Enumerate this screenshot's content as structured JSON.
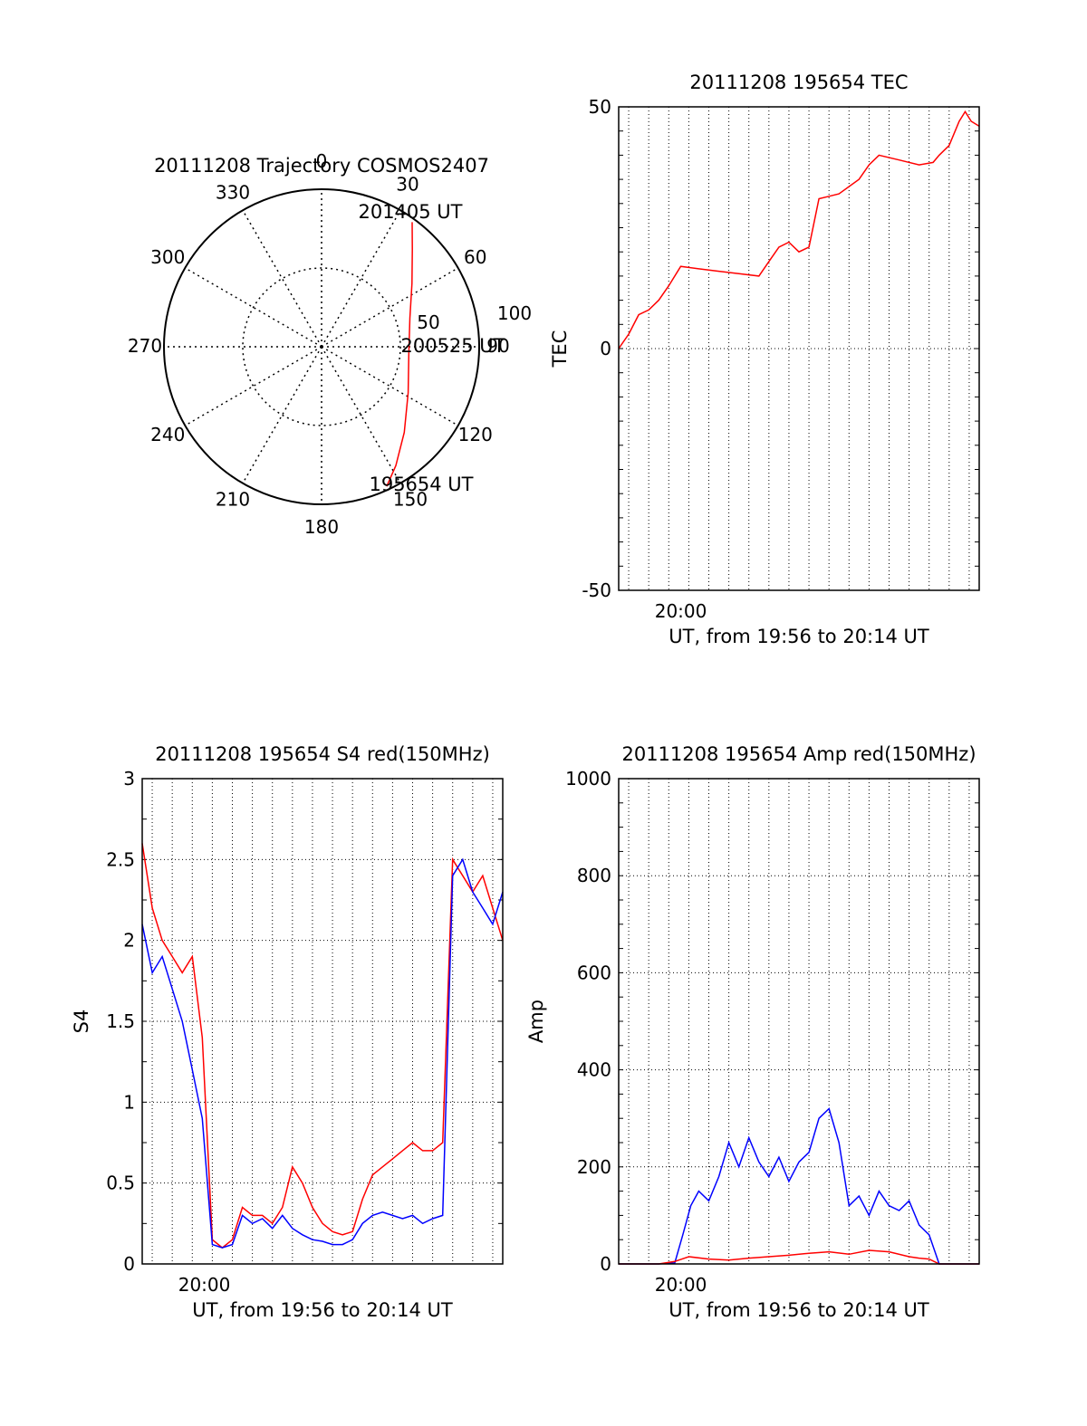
{
  "chart_data": [
    {
      "type": "polar",
      "title": "20111208 Trajectory COSMOS2407",
      "angle_labels": [
        "0",
        "30",
        "60",
        "90",
        "120",
        "150",
        "180",
        "210",
        "240",
        "270",
        "300",
        "330"
      ],
      "radial_labels": [
        "50",
        "100"
      ],
      "annotations": [
        "201405 UT",
        "200525 UT",
        "195654 UT"
      ],
      "series": [
        {
          "color": "#ff0000",
          "points": [
            {
              "az": 155,
              "el": 2
            },
            {
              "az": 148,
              "el": 10
            },
            {
              "az": 136,
              "el": 22
            },
            {
              "az": 118,
              "el": 34
            },
            {
              "az": 95,
              "el": 40
            },
            {
              "az": 72,
              "el": 37
            },
            {
              "az": 55,
              "el": 27
            },
            {
              "az": 43,
              "el": 14
            },
            {
              "az": 36,
              "el": 2
            }
          ]
        }
      ]
    },
    {
      "type": "line",
      "title": "20111208 195654 TEC",
      "xlabel": "UT, from 19:56 to 20:14 UT",
      "ylabel": "TEC",
      "xlim": [
        0,
        18
      ],
      "ylim": [
        -50,
        50
      ],
      "x_tick_labels": [
        {
          "x": 3.1,
          "label": "20:00"
        }
      ],
      "y_tick_labels": [
        "50",
        "0",
        "-50"
      ],
      "grid": true,
      "series": [
        {
          "color": "#ff0000",
          "x": [
            0,
            0.5,
            1.0,
            1.5,
            2.0,
            2.5,
            3.1,
            4.0,
            5.0,
            6.0,
            7.0,
            7.5,
            8.0,
            8.5,
            9.0,
            9.5,
            10.0,
            10.5,
            11.0,
            12.0,
            12.5,
            13.0,
            14.0,
            15.0,
            15.7,
            16.0,
            16.5,
            17.0,
            17.3,
            17.6,
            18.0
          ],
          "y": [
            0,
            3,
            7,
            8,
            10,
            13,
            17,
            16.5,
            16,
            15.5,
            15,
            18,
            21,
            22,
            20,
            21,
            31,
            31.5,
            32,
            35,
            38,
            40,
            39,
            38,
            38.5,
            40,
            42,
            47,
            49,
            47,
            46
          ]
        }
      ]
    },
    {
      "type": "line",
      "title": "20111208 195654 S4 red(150MHz)",
      "xlabel": "UT, from 19:56 to 20:14 UT",
      "ylabel": "S4",
      "xlim": [
        0,
        18
      ],
      "ylim": [
        0,
        3
      ],
      "x_tick_labels": [
        {
          "x": 3.1,
          "label": "20:00"
        }
      ],
      "y_tick_labels": [
        "0",
        "0.5",
        "1",
        "1.5",
        "2",
        "2.5",
        "3"
      ],
      "grid": true,
      "series": [
        {
          "color": "#ff0000",
          "x": [
            0,
            0.5,
            1.0,
            1.5,
            2.0,
            2.5,
            3.0,
            3.5,
            4.0,
            4.5,
            5.0,
            5.5,
            6.0,
            6.5,
            7.0,
            7.5,
            8.0,
            8.5,
            9.0,
            9.5,
            10.0,
            10.5,
            11.0,
            11.5,
            12.0,
            12.5,
            13.0,
            13.5,
            14.0,
            14.5,
            15.0,
            15.5,
            16.0,
            16.5,
            17.0,
            17.5,
            18.0
          ],
          "y": [
            2.6,
            2.2,
            2.0,
            1.9,
            1.8,
            1.9,
            1.4,
            0.15,
            0.1,
            0.15,
            0.35,
            0.3,
            0.3,
            0.25,
            0.35,
            0.6,
            0.5,
            0.35,
            0.25,
            0.2,
            0.18,
            0.2,
            0.4,
            0.55,
            0.6,
            0.65,
            0.7,
            0.75,
            0.7,
            0.7,
            0.75,
            2.5,
            2.4,
            2.3,
            2.4,
            2.2,
            2.0
          ]
        },
        {
          "color": "#0000ff",
          "x": [
            0,
            0.5,
            1.0,
            1.5,
            2.0,
            2.5,
            3.0,
            3.5,
            4.0,
            4.5,
            5.0,
            5.5,
            6.0,
            6.5,
            7.0,
            7.5,
            8.0,
            8.5,
            9.0,
            9.5,
            10.0,
            10.5,
            11.0,
            11.5,
            12.0,
            12.5,
            13.0,
            13.5,
            14.0,
            14.5,
            15.0,
            15.5,
            16.0,
            16.5,
            17.0,
            17.5,
            18.0
          ],
          "y": [
            2.1,
            1.8,
            1.9,
            1.7,
            1.5,
            1.2,
            0.9,
            0.12,
            0.1,
            0.12,
            0.3,
            0.25,
            0.28,
            0.22,
            0.3,
            0.22,
            0.18,
            0.15,
            0.14,
            0.12,
            0.12,
            0.15,
            0.25,
            0.3,
            0.32,
            0.3,
            0.28,
            0.3,
            0.25,
            0.28,
            0.3,
            2.4,
            2.5,
            2.3,
            2.2,
            2.1,
            2.3
          ]
        }
      ]
    },
    {
      "type": "line",
      "title": "20111208 195654 Amp red(150MHz)",
      "xlabel": "UT, from 19:56 to 20:14 UT",
      "ylabel": "Amp",
      "xlim": [
        0,
        18
      ],
      "ylim": [
        0,
        1000
      ],
      "x_tick_labels": [
        {
          "x": 3.1,
          "label": "20:00"
        }
      ],
      "y_tick_labels": [
        "0",
        "200",
        "400",
        "600",
        "800",
        "1000"
      ],
      "grid": true,
      "series": [
        {
          "color": "#0000ff",
          "x": [
            0,
            1.0,
            2.0,
            2.8,
            3.2,
            3.6,
            4.0,
            4.5,
            5.0,
            5.5,
            6.0,
            6.5,
            7.0,
            7.5,
            8.0,
            8.5,
            9.0,
            9.5,
            10.0,
            10.5,
            11.0,
            11.5,
            12.0,
            12.5,
            13.0,
            13.5,
            14.0,
            14.5,
            15.0,
            15.5,
            16.0,
            17.0,
            18.0
          ],
          "y": [
            0,
            0,
            0,
            2,
            60,
            120,
            150,
            130,
            180,
            250,
            200,
            260,
            210,
            180,
            220,
            170,
            210,
            230,
            300,
            320,
            250,
            120,
            140,
            100,
            150,
            120,
            110,
            130,
            80,
            60,
            0,
            0,
            0
          ]
        },
        {
          "color": "#ff0000",
          "x": [
            0,
            2.0,
            2.8,
            3.5,
            4.5,
            5.5,
            6.5,
            7.5,
            8.5,
            9.5,
            10.5,
            11.5,
            12.5,
            13.5,
            14.5,
            15.0,
            15.5,
            16.0,
            17.0,
            18.0
          ],
          "y": [
            0,
            0,
            5,
            15,
            10,
            8,
            12,
            15,
            18,
            22,
            25,
            20,
            28,
            25,
            15,
            12,
            10,
            0,
            0,
            0
          ]
        }
      ]
    }
  ]
}
